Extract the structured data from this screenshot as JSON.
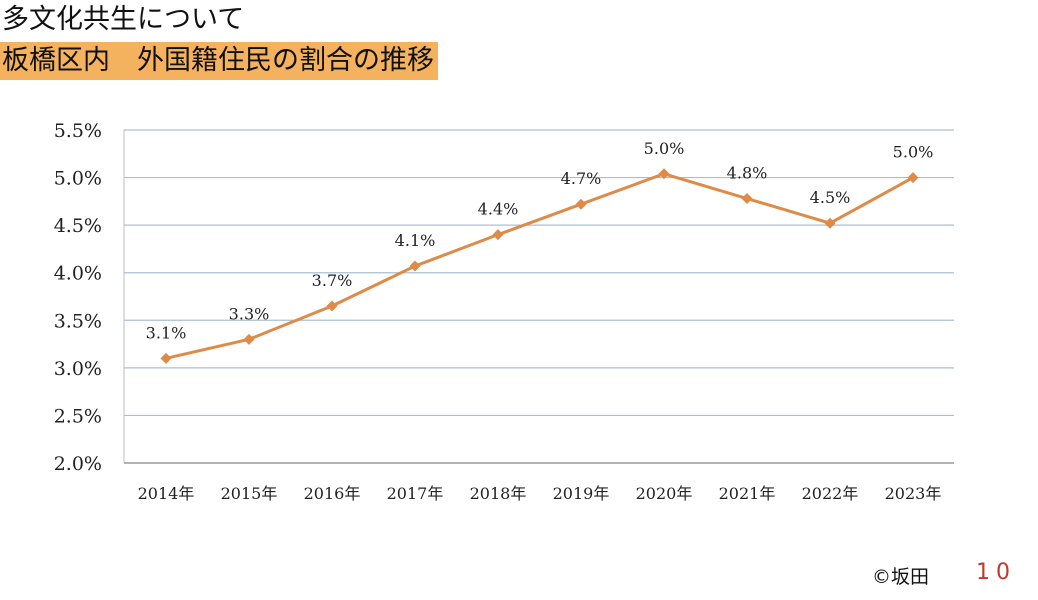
{
  "header": {
    "title": "多文化共生について",
    "subtitle": "板橋区内　外国籍住民の割合の推移"
  },
  "footer": {
    "copyright": "©坂田",
    "page_number": "10"
  },
  "colors": {
    "line": "#de8a48",
    "grid": "#a9bfd6",
    "subtitle_bg": "#f4b25e",
    "page_number": "#c0392b"
  },
  "chart_data": {
    "type": "line",
    "title": "",
    "xlabel": "",
    "ylabel": "",
    "categories": [
      "2014年",
      "2015年",
      "2016年",
      "2017年",
      "2018年",
      "2019年",
      "2020年",
      "2021年",
      "2022年",
      "2023年"
    ],
    "series": [
      {
        "name": "外国籍住民の割合",
        "values": [
          3.1,
          3.3,
          3.65,
          4.07,
          4.4,
          4.72,
          5.04,
          4.78,
          4.52,
          5.0
        ],
        "labels": [
          "3.1%",
          "3.3%",
          "3.7%",
          "4.1%",
          "4.4%",
          "4.7%",
          "5.0%",
          "4.8%",
          "4.5%",
          "5.0%"
        ]
      }
    ],
    "ylim": [
      2.0,
      5.5
    ],
    "yticks": [
      2.0,
      2.5,
      3.0,
      3.5,
      4.0,
      4.5,
      5.0,
      5.5
    ],
    "ytick_labels": [
      "2.0%",
      "2.5%",
      "3.0%",
      "3.5%",
      "4.0%",
      "4.5%",
      "5.0%",
      "5.5%"
    ],
    "grid": true,
    "marker": "diamond"
  }
}
